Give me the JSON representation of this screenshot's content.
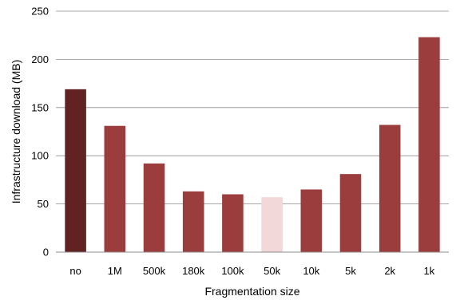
{
  "chart_data": {
    "type": "bar",
    "xlabel": "Fragmentation size",
    "ylabel": "Infrastructure download (MB)",
    "ylim": [
      0,
      250
    ],
    "yticks": [
      0,
      50,
      100,
      150,
      200,
      250
    ],
    "grid": "horizontal",
    "categories": [
      "no",
      "1M",
      "500k",
      "180k",
      "100k",
      "50k",
      "10k",
      "5k",
      "2k",
      "1k"
    ],
    "values": [
      169,
      131,
      92,
      63,
      60,
      57,
      65,
      81,
      132,
      223
    ],
    "bar_colors": [
      "#622222",
      "#9b3d3d",
      "#9b3d3d",
      "#9b3d3d",
      "#9b3d3d",
      "#f2d8d8",
      "#9b3d3d",
      "#9b3d3d",
      "#9b3d3d",
      "#9b3d3d"
    ]
  }
}
